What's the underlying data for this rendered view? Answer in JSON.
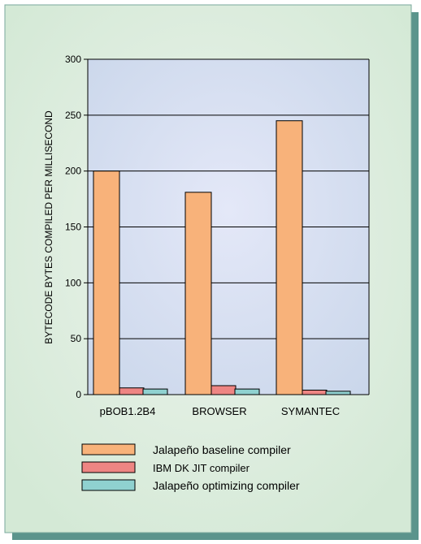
{
  "chart_data": {
    "type": "bar",
    "ylabel": "BYTECODE BYTES COMPILED PER MILLISECOND",
    "xlabel": "",
    "title": "",
    "ylim": [
      0,
      300
    ],
    "yticks": [
      0,
      50,
      100,
      150,
      200,
      250,
      300
    ],
    "grid": true,
    "legend_position": "bottom",
    "categories": [
      "pBOB1.2B4",
      "BROWSER",
      "SYMANTEC"
    ],
    "series": [
      {
        "name": "Jalapeño baseline compiler",
        "color": "#f8b27a",
        "values": [
          200,
          181,
          245
        ]
      },
      {
        "name": "IBM DK JIT compiler",
        "color": "#ee8583",
        "values": [
          6,
          8,
          4
        ]
      },
      {
        "name": "Jalapeño optimizing compiler",
        "color": "#8fd1d0",
        "values": [
          5,
          5,
          3
        ]
      }
    ]
  },
  "colors": {
    "frame_background": "#d4e9d6",
    "plot_background": "#cdd8ec",
    "shadow": "#5b948c"
  }
}
